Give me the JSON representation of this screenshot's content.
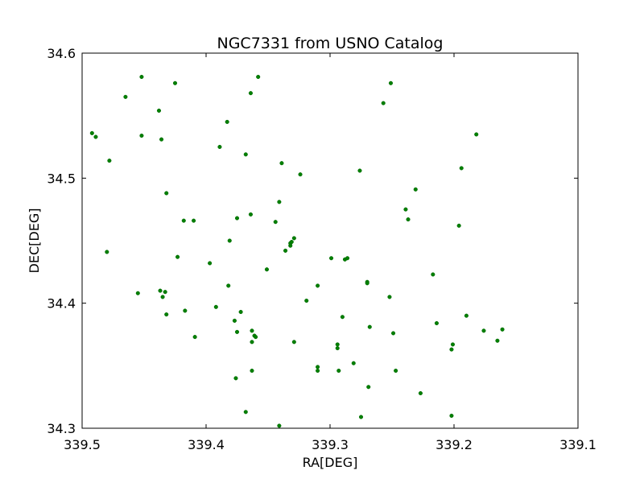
{
  "chart_data": {
    "type": "scatter",
    "title": "NGC7331 from USNO Catalog",
    "xlabel": "RA[DEG]",
    "ylabel": "DEC[DEG]",
    "xlim": [
      339.5,
      339.1
    ],
    "ylim": [
      34.3,
      34.6
    ],
    "x_inverted": true,
    "x_ticks": [
      339.5,
      339.4,
      339.3,
      339.2,
      339.1
    ],
    "x_tick_labels": [
      "339.5",
      "339.4",
      "339.3",
      "339.2",
      "339.1"
    ],
    "y_ticks": [
      34.3,
      34.4,
      34.5,
      34.6
    ],
    "y_tick_labels": [
      "34.3",
      "34.4",
      "34.5",
      "34.6"
    ],
    "grid": false,
    "marker_color": "#008000",
    "series": [
      {
        "points": [
          [
            339.492,
            34.536
          ],
          [
            339.489,
            34.533
          ],
          [
            339.478,
            34.514
          ],
          [
            339.48,
            34.441
          ],
          [
            339.465,
            34.565
          ],
          [
            339.452,
            34.581
          ],
          [
            339.452,
            34.534
          ],
          [
            339.455,
            34.408
          ],
          [
            339.438,
            34.554
          ],
          [
            339.436,
            34.531
          ],
          [
            339.432,
            34.488
          ],
          [
            339.437,
            34.41
          ],
          [
            339.433,
            34.409
          ],
          [
            339.435,
            34.405
          ],
          [
            339.432,
            34.391
          ],
          [
            339.425,
            34.576
          ],
          [
            339.423,
            34.437
          ],
          [
            339.418,
            34.466
          ],
          [
            339.417,
            34.394
          ],
          [
            339.41,
            34.466
          ],
          [
            339.409,
            34.373
          ],
          [
            339.397,
            34.432
          ],
          [
            339.392,
            34.397
          ],
          [
            339.389,
            34.525
          ],
          [
            339.383,
            34.545
          ],
          [
            339.381,
            34.45
          ],
          [
            339.382,
            34.414
          ],
          [
            339.377,
            34.386
          ],
          [
            339.375,
            34.468
          ],
          [
            339.375,
            34.377
          ],
          [
            339.376,
            34.34
          ],
          [
            339.372,
            34.393
          ],
          [
            339.368,
            34.519
          ],
          [
            339.368,
            34.313
          ],
          [
            339.364,
            34.568
          ],
          [
            339.364,
            34.471
          ],
          [
            339.363,
            34.378
          ],
          [
            339.361,
            34.374
          ],
          [
            339.36,
            34.373
          ],
          [
            339.363,
            34.369
          ],
          [
            339.363,
            34.346
          ],
          [
            339.358,
            34.581
          ],
          [
            339.344,
            34.465
          ],
          [
            339.341,
            34.481
          ],
          [
            339.339,
            34.512
          ],
          [
            339.336,
            34.442
          ],
          [
            339.351,
            34.427
          ],
          [
            339.332,
            34.446
          ],
          [
            339.332,
            34.448
          ],
          [
            339.331,
            34.449
          ],
          [
            339.329,
            34.452
          ],
          [
            339.329,
            34.369
          ],
          [
            339.324,
            34.503
          ],
          [
            339.341,
            34.302
          ],
          [
            339.319,
            34.402
          ],
          [
            339.31,
            34.414
          ],
          [
            339.31,
            34.349
          ],
          [
            339.31,
            34.346
          ],
          [
            339.299,
            34.436
          ],
          [
            339.294,
            34.367
          ],
          [
            339.294,
            34.364
          ],
          [
            339.293,
            34.346
          ],
          [
            339.29,
            34.389
          ],
          [
            339.288,
            34.435
          ],
          [
            339.286,
            34.436
          ],
          [
            339.281,
            34.352
          ],
          [
            339.276,
            34.506
          ],
          [
            339.275,
            34.309
          ],
          [
            339.27,
            34.417
          ],
          [
            339.27,
            34.416
          ],
          [
            339.269,
            34.333
          ],
          [
            339.268,
            34.381
          ],
          [
            339.257,
            34.56
          ],
          [
            339.251,
            34.576
          ],
          [
            339.252,
            34.405
          ],
          [
            339.249,
            34.376
          ],
          [
            339.247,
            34.346
          ],
          [
            339.239,
            34.475
          ],
          [
            339.237,
            34.467
          ],
          [
            339.231,
            34.491
          ],
          [
            339.227,
            34.328
          ],
          [
            339.217,
            34.423
          ],
          [
            339.214,
            34.384
          ],
          [
            339.202,
            34.363
          ],
          [
            339.201,
            34.367
          ],
          [
            339.202,
            34.31
          ],
          [
            339.196,
            34.462
          ],
          [
            339.194,
            34.508
          ],
          [
            339.19,
            34.39
          ],
          [
            339.182,
            34.535
          ],
          [
            339.176,
            34.378
          ],
          [
            339.165,
            34.37
          ],
          [
            339.161,
            34.379
          ]
        ]
      }
    ]
  }
}
